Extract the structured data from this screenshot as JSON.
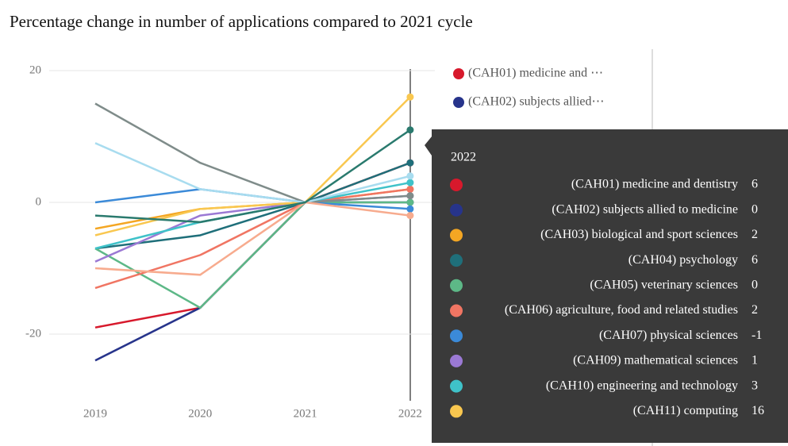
{
  "chart_data": {
    "type": "line",
    "title": "Percentage change in number of applications compared to 2021 cycle",
    "categories": [
      "2019",
      "2020",
      "2021",
      "2022"
    ],
    "ylim": [
      -30,
      21
    ],
    "yticks": [
      -20,
      0,
      20
    ],
    "grid": true,
    "series": [
      {
        "name": "(CAH01) medicine and dentistry",
        "color": "#d7192c",
        "values": [
          -19,
          -16,
          0,
          6
        ]
      },
      {
        "name": "(CAH02) subjects allied to medicine",
        "color": "#27348b",
        "values": [
          -24,
          -16,
          0,
          0
        ]
      },
      {
        "name": "(CAH03) biological and sport sciences",
        "color": "#f4a623",
        "values": [
          -4,
          -1,
          0,
          2
        ]
      },
      {
        "name": "(CAH04) psychology",
        "color": "#1f6f7a",
        "values": [
          -7,
          -5,
          0,
          6
        ]
      },
      {
        "name": "(CAH05) veterinary sciences",
        "color": "#5db887",
        "values": [
          -7,
          -16,
          0,
          0
        ]
      },
      {
        "name": "(CAH06) agriculture, food and related studies",
        "color": "#f07563",
        "values": [
          -13,
          -8,
          0,
          2
        ]
      },
      {
        "name": "(CAH07) physical sciences",
        "color": "#3b8ad8",
        "values": [
          0,
          2,
          0,
          -1
        ]
      },
      {
        "name": "(CAH09) mathematical sciences",
        "color": "#9b79d4",
        "values": [
          -9,
          -2,
          0,
          1
        ]
      },
      {
        "name": "(CAH10) engineering and technology",
        "color": "#3fc2c9",
        "values": [
          -7,
          -3,
          0,
          3
        ]
      },
      {
        "name": "(CAH11) computing",
        "color": "#f9c74f",
        "values": [
          -5,
          -1,
          0,
          16
        ]
      },
      {
        "color": "#7f8c8a",
        "values": [
          15,
          6,
          0,
          1
        ]
      },
      {
        "color": "#a8dcef",
        "values": [
          9,
          2,
          0,
          4
        ]
      },
      {
        "color": "#f7ab8e",
        "values": [
          -10,
          -11,
          0,
          -2
        ]
      },
      {
        "color": "#2a7a6e",
        "values": [
          -2,
          -3,
          0,
          11
        ]
      }
    ],
    "legend": [
      "(CAH01) medicine and ⋯",
      "(CAH02) subjects allied⋯"
    ],
    "tooltip_title": "2022"
  }
}
